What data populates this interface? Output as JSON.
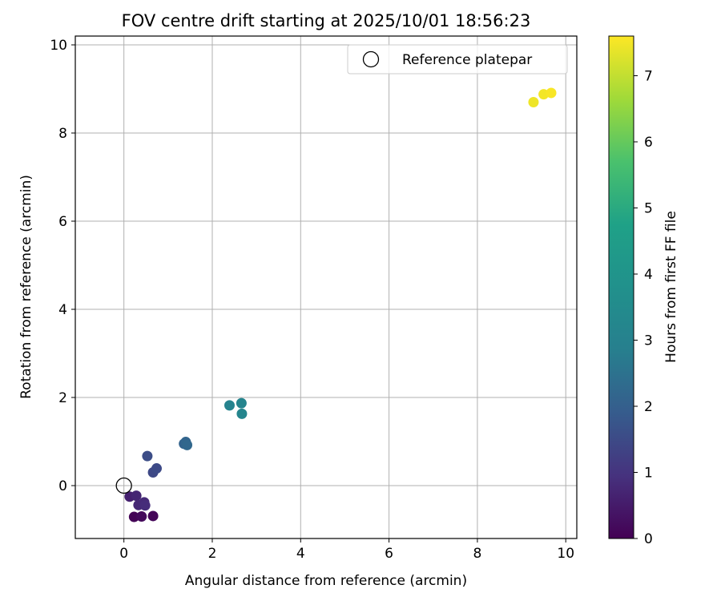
{
  "chart_data": {
    "type": "scatter",
    "title": "FOV centre drift starting at 2025/10/01 18:56:23",
    "xlabel": "Angular distance from reference (arcmin)",
    "ylabel": "Rotation from reference (arcmin)",
    "xlim": [
      -1.1,
      10.25
    ],
    "ylim": [
      -1.2,
      10.2
    ],
    "xticks": [
      0,
      2,
      4,
      6,
      8,
      10
    ],
    "yticks": [
      0,
      2,
      4,
      6,
      8,
      10
    ],
    "grid": true,
    "legend": {
      "position": "top-right",
      "label": "Reference platepar"
    },
    "reference_point": {
      "x": 0,
      "y": 0
    },
    "colorbar": {
      "label": "Hours from first FF file",
      "range": [
        0,
        7.6
      ],
      "ticks": [
        0,
        1,
        2,
        3,
        4,
        5,
        6,
        7
      ],
      "colormap": "viridis"
    },
    "points": [
      {
        "x": 0.23,
        "y": -0.71,
        "hours": 0.05
      },
      {
        "x": 0.4,
        "y": -0.7,
        "hours": 0.15
      },
      {
        "x": 0.66,
        "y": -0.69,
        "hours": 0.1
      },
      {
        "x": 0.13,
        "y": -0.25,
        "hours": 0.6
      },
      {
        "x": 0.28,
        "y": -0.23,
        "hours": 0.7
      },
      {
        "x": 0.33,
        "y": -0.44,
        "hours": 0.75
      },
      {
        "x": 0.46,
        "y": -0.38,
        "hours": 0.8
      },
      {
        "x": 0.48,
        "y": -0.45,
        "hours": 0.85
      },
      {
        "x": 0.53,
        "y": 0.67,
        "hours": 1.55
      },
      {
        "x": 0.66,
        "y": 0.3,
        "hours": 1.45
      },
      {
        "x": 0.74,
        "y": 0.39,
        "hours": 1.5
      },
      {
        "x": 1.36,
        "y": 0.95,
        "hours": 2.1
      },
      {
        "x": 1.4,
        "y": 0.99,
        "hours": 2.15
      },
      {
        "x": 1.43,
        "y": 0.92,
        "hours": 2.2
      },
      {
        "x": 2.39,
        "y": 1.82,
        "hours": 3.05
      },
      {
        "x": 2.66,
        "y": 1.87,
        "hours": 3.1
      },
      {
        "x": 2.67,
        "y": 1.63,
        "hours": 3.15
      },
      {
        "x": 9.27,
        "y": 8.7,
        "hours": 7.45
      },
      {
        "x": 9.5,
        "y": 8.88,
        "hours": 7.5
      },
      {
        "x": 9.67,
        "y": 8.91,
        "hours": 7.55
      }
    ]
  }
}
